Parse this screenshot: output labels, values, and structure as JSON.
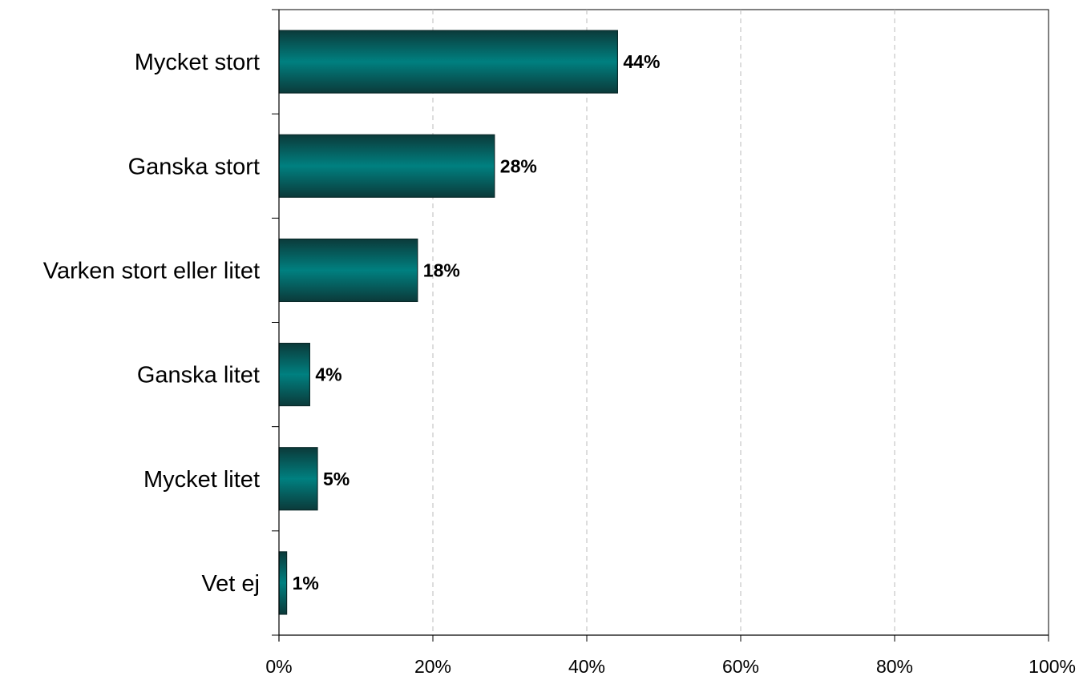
{
  "chart_data": {
    "type": "bar",
    "orientation": "horizontal",
    "title": "",
    "xlabel": "",
    "ylabel": "",
    "categories": [
      "Mycket stort",
      "Ganska stort",
      "Varken stort eller litet",
      "Ganska litet",
      "Mycket litet",
      "Vet ej"
    ],
    "values": [
      44,
      28,
      18,
      4,
      5,
      1
    ],
    "value_labels": [
      "44%",
      "28%",
      "18%",
      "4%",
      "5%",
      "1%"
    ],
    "xlim": [
      0,
      100
    ],
    "x_ticks": [
      0,
      20,
      40,
      60,
      80,
      100
    ],
    "x_tick_labels": [
      "0%",
      "20%",
      "40%",
      "60%",
      "80%",
      "100%"
    ],
    "grid": "vertical dashed",
    "legend": "none",
    "bar_color": "#008080",
    "bar_edge_color": "#0a2a2a"
  }
}
